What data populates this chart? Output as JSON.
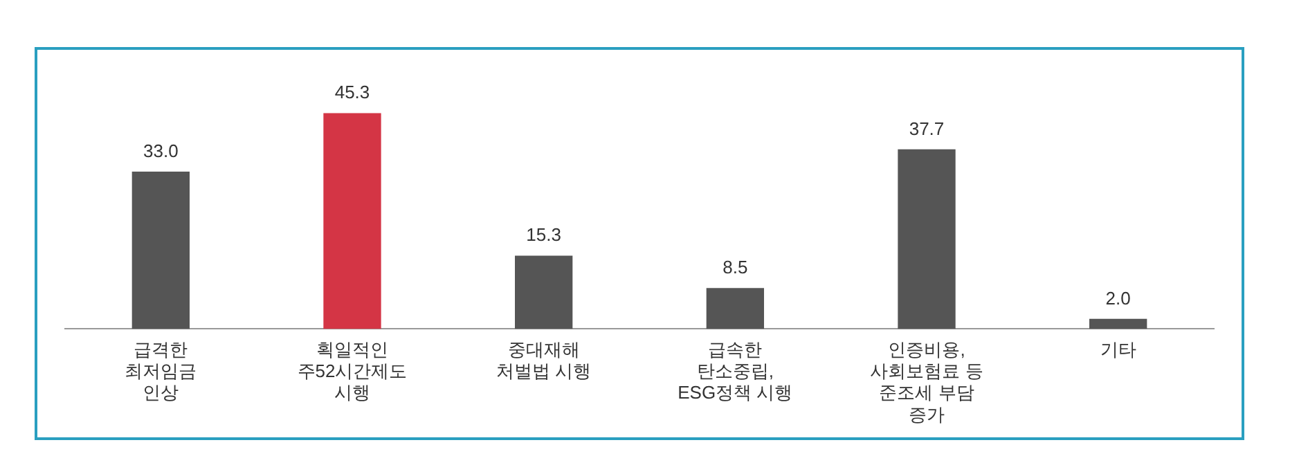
{
  "chart_data": {
    "type": "bar",
    "categories": [
      "급격한\n최저임금\n인상",
      "획일적인\n주52시간제도\n시행",
      "중대재해\n처벌법 시행",
      "급속한\n탄소중립,\nESG정책 시행",
      "인증비용,\n사회보험료 등\n준조세 부담\n증가",
      "기타"
    ],
    "values": [
      33.0,
      45.3,
      15.3,
      8.5,
      37.7,
      2.0
    ],
    "colors": [
      "#555555",
      "#d43545",
      "#555555",
      "#555555",
      "#555555",
      "#555555"
    ],
    "value_labels": [
      "33.0",
      "45.3",
      "15.3",
      "8.5",
      "37.7",
      "2.0"
    ],
    "grid": false,
    "legend": false
  }
}
